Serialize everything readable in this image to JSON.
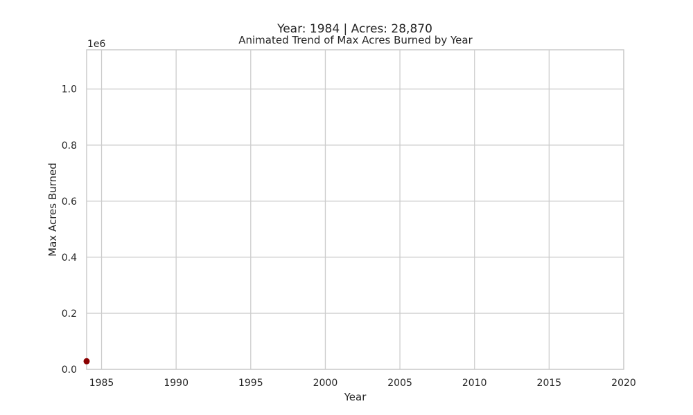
{
  "figure": {
    "supertitle": "Year: 1984 | Acres: 28,870"
  },
  "chart_data": {
    "type": "scatter",
    "title": "Animated Trend of Max Acres Burned by Year",
    "xlabel": "Year",
    "ylabel": "Max Acres Burned",
    "xlim": [
      1984,
      2020
    ],
    "ylim": [
      0,
      1140000
    ],
    "y_offset_label": "1e6",
    "x_ticks": [
      1985,
      1990,
      1995,
      2000,
      2005,
      2010,
      2015,
      2020
    ],
    "x_tick_labels": [
      "1985",
      "1990",
      "1995",
      "2000",
      "2005",
      "2010",
      "2015",
      "2020"
    ],
    "y_ticks": [
      0,
      200000,
      400000,
      600000,
      800000,
      1000000
    ],
    "y_tick_labels": [
      "0.0",
      "0.2",
      "0.4",
      "0.6",
      "0.8",
      "1.0"
    ],
    "grid": true,
    "series": [
      {
        "x": [
          1984
        ],
        "y": [
          28870
        ],
        "color": "#8b0000"
      }
    ]
  }
}
